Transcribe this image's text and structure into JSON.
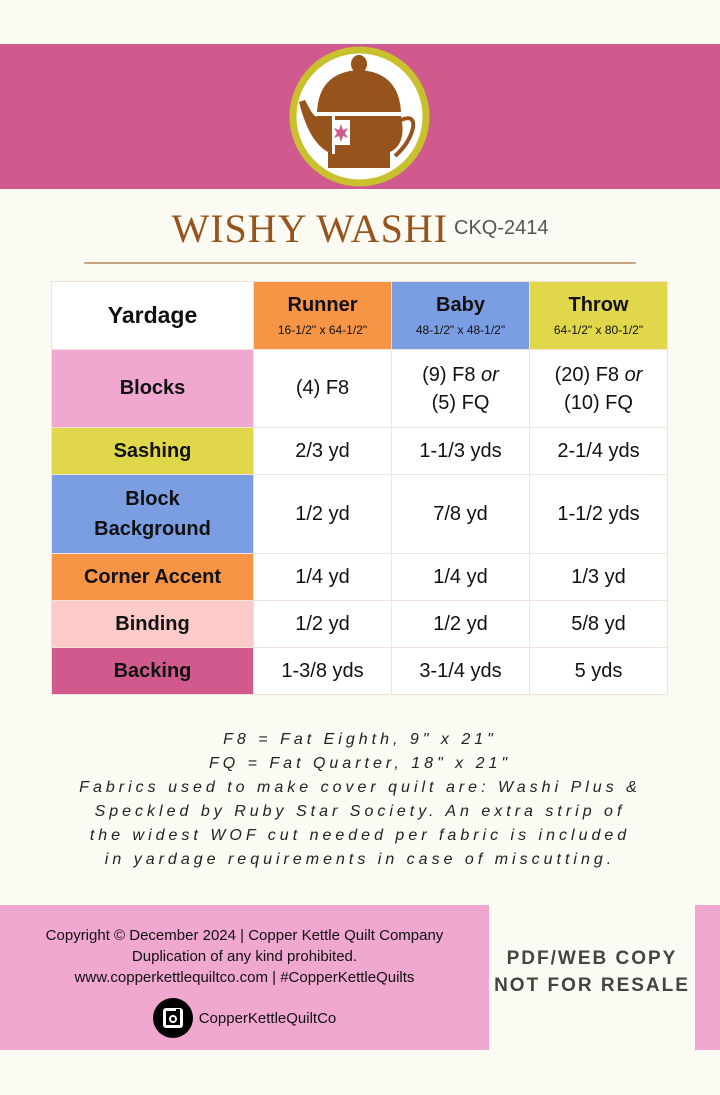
{
  "header": {
    "title": "WISHY WASHI",
    "code": "CKQ-2414",
    "logo": "teapot-logo"
  },
  "colors": {
    "band": "#d05a8e",
    "runner": "#f79546",
    "baby": "#7b9ee3",
    "throw": "#e0d84a",
    "blocks": "#f0a8d0",
    "binding": "#fdcaca"
  },
  "table": {
    "corner": "Yardage",
    "columns": [
      {
        "label": "Runner",
        "size": "16-1/2\" x 64-1/2\""
      },
      {
        "label": "Baby",
        "size": "48-1/2\" x 48-1/2\""
      },
      {
        "label": "Throw",
        "size": "64-1/2\" x 80-1/2\""
      }
    ],
    "rows": [
      {
        "label": "Blocks",
        "values": [
          [
            "(4) F8"
          ],
          [
            "(9) F8 ",
            "or",
            "(5) FQ"
          ],
          [
            "(20) F8 ",
            "or",
            "(10) FQ"
          ]
        ]
      },
      {
        "label": "Sashing",
        "values": [
          "2/3 yd",
          "1-1/3 yds",
          "2-1/4 yds"
        ]
      },
      {
        "label": "Block Background",
        "values": [
          "1/2 yd",
          "7/8 yd",
          "1-1/2 yds"
        ]
      },
      {
        "label": "Corner Accent",
        "values": [
          "1/4 yd",
          "1/4 yd",
          "1/3 yd"
        ]
      },
      {
        "label": "Binding",
        "values": [
          "1/2 yd",
          "1/2 yd",
          "5/8 yd"
        ]
      },
      {
        "label": "Backing",
        "values": [
          "1-3/8 yds",
          "3-1/4 yds",
          "5 yds"
        ]
      }
    ]
  },
  "notes": [
    "F8 = Fat Eighth, 9\" x 21\"",
    "FQ = Fat Quarter, 18\" x 21\"",
    "Fabrics used to make cover quilt are: Washi Plus &",
    "Speckled by Ruby Star Society. An extra strip of",
    "the widest WOF cut needed per fabric is included",
    "in yardage requirements in case of miscutting."
  ],
  "footer": {
    "lines": [
      "Copyright © December 2024  |  Copper Kettle Quilt Company",
      "Duplication of any kind prohibited.",
      "www.copperkettlequiltco.com | #CopperKettleQuilts"
    ],
    "instagram": "CopperKettleQuiltCo",
    "stamp": [
      "PDF/WEB COPY",
      "NOT FOR RESALE"
    ]
  }
}
